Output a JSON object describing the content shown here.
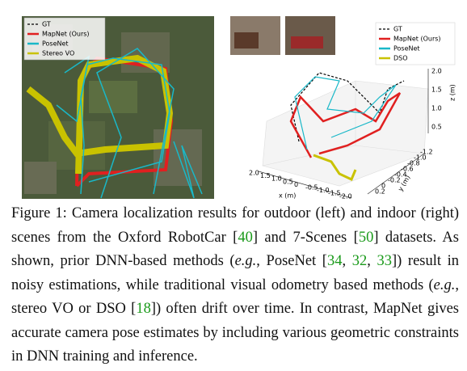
{
  "figure": {
    "left": {
      "legend": [
        "GT",
        "MapNet (Ours)",
        "PoseNet",
        "Stereo VO"
      ]
    },
    "right": {
      "legend": [
        "GT",
        "MapNet (Ours)",
        "PoseNet",
        "DSO"
      ],
      "x_label": "x (m)",
      "y_label": "y (m)",
      "z_label": "z (m)",
      "x_ticks": [
        "2.0",
        "1.5",
        "1.0",
        "0.5",
        "0",
        "-0.5",
        "-1.0",
        "-1.5",
        "-2.0"
      ],
      "y_ticks": [
        "-1.2",
        "-1.0",
        "-0.8",
        "-0.6",
        "-0.4",
        "-0.2",
        "0",
        "0.2"
      ],
      "z_ticks": [
        "2.0",
        "1.5",
        "1.0",
        "0.5"
      ]
    }
  },
  "caption": [
    {
      "text": "Figure 1:  Camera localization results for outdoor (left) and indoor (right) scenes from the Oxford RobotCar [",
      "style": ""
    },
    {
      "text": "40",
      "style": "cite"
    },
    {
      "text": "] and 7-Scenes [",
      "style": ""
    },
    {
      "text": "50",
      "style": "cite"
    },
    {
      "text": "] datasets. As shown, prior DNN-based methods (",
      "style": ""
    },
    {
      "text": "e.g.",
      "style": "italic"
    },
    {
      "text": ", PoseNet [",
      "style": ""
    },
    {
      "text": "34",
      "style": "cite"
    },
    {
      "text": ", ",
      "style": ""
    },
    {
      "text": "32",
      "style": "cite"
    },
    {
      "text": ", ",
      "style": ""
    },
    {
      "text": "33",
      "style": "cite"
    },
    {
      "text": "]) result in noisy estimations, while traditional visual odometry based methods (",
      "style": ""
    },
    {
      "text": "e.g.",
      "style": "italic"
    },
    {
      "text": ", stereo VO or DSO [",
      "style": ""
    },
    {
      "text": "18",
      "style": "cite"
    },
    {
      "text": "]) often drift over time.  In contrast, MapNet gives accurate camera pose estimates by including various geometric constraints in DNN training and inference.",
      "style": ""
    }
  ]
}
